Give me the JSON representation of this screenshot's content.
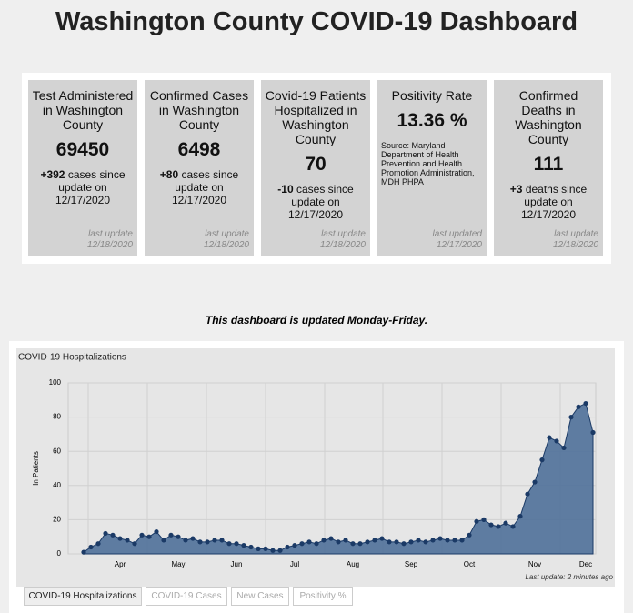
{
  "title": "Washington County COVID-19 Dashboard",
  "cards": [
    {
      "title": "Test Administered in Washington County",
      "value": "69450",
      "change": "+392",
      "change_text": "cases since update on 12/17/2020",
      "last_update": "last update 12/18/2020"
    },
    {
      "title": "Confirmed Cases in Washington County",
      "value": "6498",
      "change": "+80",
      "change_text": "cases since update on 12/17/2020",
      "last_update": "last update 12/18/2020"
    },
    {
      "title": "Covid-19 Patients Hospitalized in Washington County",
      "value": "70",
      "change": "-10",
      "change_text": "cases since update on 12/17/2020",
      "last_update": "last update 12/18/2020"
    },
    {
      "title": "Positivity Rate",
      "value": "13.36 %",
      "source": "Source: Maryland Department of Health Prevention and Health Promotion Administration, MDH PHPA",
      "last_update": "last updated 12/17/2020"
    },
    {
      "title": "Confirmed Deaths in Washington County",
      "value": "111",
      "change": "+3",
      "change_text": "deaths since update on 12/17/2020",
      "last_update": "last update 12/18/2020"
    }
  ],
  "notice": "This dashboard is updated Monday-Friday.",
  "chart_data": {
    "type": "area",
    "title": "COVID-19 Hospitalizations",
    "y_label": "In Patients",
    "footnote": "Last update: 2 minutes ago",
    "ylim": [
      0,
      100
    ],
    "yticks": [
      0,
      20,
      40,
      60,
      80,
      100
    ],
    "grid": true,
    "color": "#4f7099",
    "marker_color": "#1b3a66",
    "categories": [
      null,
      null,
      null,
      null,
      null,
      "Apr",
      null,
      null,
      null,
      null,
      null,
      null,
      null,
      "May",
      null,
      null,
      null,
      null,
      null,
      null,
      null,
      "Jun",
      null,
      null,
      null,
      null,
      null,
      null,
      null,
      "Jul",
      null,
      null,
      null,
      null,
      null,
      null,
      null,
      "Aug",
      null,
      null,
      null,
      null,
      null,
      null,
      null,
      "Sep",
      null,
      null,
      null,
      null,
      null,
      null,
      null,
      "Oct",
      null,
      null,
      null,
      null,
      null,
      null,
      null,
      null,
      "Nov",
      null,
      null,
      null,
      null,
      null,
      null,
      "Dec",
      null
    ],
    "values": [
      1,
      4,
      6,
      12,
      11,
      9,
      8,
      6,
      11,
      10,
      13,
      8,
      11,
      10,
      8,
      9,
      7,
      7,
      8,
      8,
      6,
      6,
      5,
      4,
      3,
      3,
      2,
      2,
      4,
      5,
      6,
      7,
      6,
      8,
      9,
      7,
      8,
      6,
      6,
      7,
      8,
      9,
      7,
      7,
      6,
      7,
      8,
      7,
      8,
      9,
      8,
      8,
      8,
      11,
      19,
      20,
      17,
      16,
      18,
      16,
      22,
      35,
      42,
      55,
      68,
      66,
      62,
      80,
      86,
      88,
      71
    ]
  },
  "tabs": [
    "COVID-19 Hospitalizations",
    "COVID-19 Cases",
    "New Cases",
    "Positivity %"
  ]
}
